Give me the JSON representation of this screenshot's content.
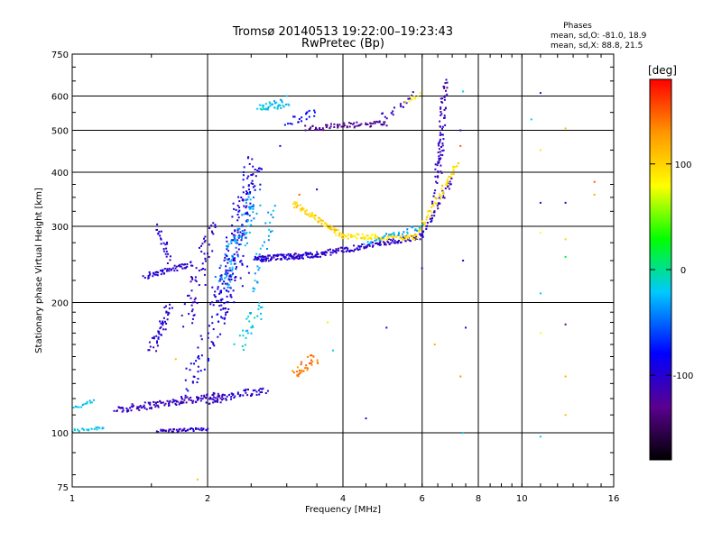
{
  "chart_data": {
    "type": "scatter",
    "title": "Tromsø 20140513 19:22:00–19:23:43",
    "subtitle": "RwPretec (Bp)",
    "xlabel": "Frequency [MHz]",
    "ylabel": "Stationary phase Virtual Height [km]",
    "x_scale": "log",
    "y_scale": "log",
    "xlim": [
      1,
      16
    ],
    "ylim": [
      75,
      750
    ],
    "x_ticks": [
      1,
      2,
      4,
      6,
      8,
      10,
      16
    ],
    "x_tick_labels": [
      "1",
      "2",
      "4",
      "6",
      "8",
      "10",
      "16"
    ],
    "y_ticks": [
      75,
      100,
      200,
      300,
      400,
      500,
      600,
      750
    ],
    "y_tick_labels": [
      "75",
      "100",
      "200",
      "300",
      "400",
      "500",
      "600",
      "750"
    ],
    "grid": true,
    "stats": {
      "heading": "Phases",
      "line_o": "mean, sd,O: -81.0, 18.9",
      "line_x": "mean, sd,X:  88.8, 21.5"
    },
    "colorbar": {
      "label": "[deg]",
      "min": -180,
      "max": 180,
      "ticks": [
        100,
        0,
        -100
      ],
      "tick_labels": [
        "100",
        "0",
        "-100"
      ],
      "colors": [
        "#000000",
        "#5a0090",
        "#0000ff",
        "#00c8ff",
        "#00ff00",
        "#ffff00",
        "#ff9600",
        "#ff0000"
      ]
    },
    "series": [
      {
        "traces": [
          {
            "x0": 1.0,
            "x1": 1.18,
            "y0": 101,
            "y1": 103,
            "n": 22,
            "j": 0.012,
            "v": -20
          },
          {
            "x0": 1.0,
            "x1": 1.12,
            "y0": 114,
            "y1": 118,
            "n": 15,
            "j": 0.015,
            "v": -20
          },
          {
            "x0": 1.25,
            "x1": 2.15,
            "y0": 113,
            "y1": 122,
            "n": 130,
            "j": 0.025,
            "v": -110
          },
          {
            "x0": 1.55,
            "x1": 2.0,
            "y0": 101,
            "y1": 102,
            "n": 45,
            "j": 0.01,
            "v": -105
          },
          {
            "x0": 1.45,
            "x1": 1.85,
            "y0": 230,
            "y1": 246,
            "n": 55,
            "j": 0.02,
            "v": -100
          },
          {
            "x0": 1.55,
            "x1": 1.65,
            "y0": 300,
            "y1": 250,
            "n": 25,
            "j": 0.03,
            "v": -100
          },
          {
            "x0": 1.5,
            "x1": 1.65,
            "y0": 155,
            "y1": 195,
            "n": 45,
            "j": 0.04,
            "v": -100
          },
          {
            "x0": 2.0,
            "x1": 2.7,
            "y0": 118,
            "y1": 126,
            "n": 60,
            "j": 0.03,
            "v": -100
          },
          {
            "x0": 2.35,
            "x1": 2.65,
            "y0": 160,
            "y1": 200,
            "n": 30,
            "j": 0.05,
            "v": -15
          },
          {
            "x0": 1.8,
            "x1": 2.05,
            "y0": 180,
            "y1": 300,
            "n": 60,
            "j": 0.07,
            "v": -105
          },
          {
            "x0": 1.8,
            "x1": 2.4,
            "y0": 125,
            "y1": 250,
            "n": 80,
            "j": 0.08,
            "v": -90
          },
          {
            "x0": 2.1,
            "x1": 2.55,
            "y0": 190,
            "y1": 420,
            "n": 180,
            "j": 0.09,
            "v": -95
          },
          {
            "x0": 2.15,
            "x1": 2.55,
            "y0": 220,
            "y1": 350,
            "n": 90,
            "j": 0.07,
            "v": -35
          },
          {
            "x0": 2.5,
            "x1": 2.8,
            "y0": 210,
            "y1": 330,
            "n": 30,
            "j": 0.05,
            "v": -30
          },
          {
            "x0": 2.55,
            "x1": 3.5,
            "y0": 252,
            "y1": 258,
            "n": 120,
            "j": 0.02,
            "v": -100
          },
          {
            "x0": 2.6,
            "x1": 3.0,
            "y0": 560,
            "y1": 580,
            "n": 40,
            "j": 0.03,
            "v": -20
          },
          {
            "x0": 3.0,
            "x1": 3.5,
            "y0": 520,
            "y1": 550,
            "n": 20,
            "j": 0.03,
            "v": -85
          },
          {
            "x0": 3.3,
            "x1": 5.0,
            "y0": 505,
            "y1": 520,
            "n": 70,
            "j": 0.02,
            "v": -130
          },
          {
            "x0": 4.8,
            "x1": 5.8,
            "y0": 530,
            "y1": 600,
            "n": 22,
            "j": 0.03,
            "v": -110
          },
          {
            "x0": 5.5,
            "x1": 5.9,
            "y0": 580,
            "y1": 610,
            "n": 10,
            "j": 0.02,
            "v": 90
          },
          {
            "x0": 3.1,
            "x1": 3.5,
            "y0": 135,
            "y1": 150,
            "n": 35,
            "j": 0.04,
            "v": 140
          },
          {
            "x0": 3.5,
            "x1": 6.0,
            "y0": 258,
            "y1": 285,
            "n": 140,
            "j": 0.02,
            "v": -105
          },
          {
            "x0": 6.0,
            "x1": 7.0,
            "y0": 285,
            "y1": 390,
            "n": 40,
            "j": 0.02,
            "v": -105
          },
          {
            "x0": 6.55,
            "x1": 6.75,
            "y0": 400,
            "y1": 650,
            "n": 60,
            "j": 0.03,
            "v": -110
          },
          {
            "x0": 6.4,
            "x1": 6.6,
            "y0": 340,
            "y1": 470,
            "n": 20,
            "j": 0.03,
            "v": -100
          }
        ]
      },
      {
        "arcs": [
          {
            "x0": 3.1,
            "x1": 4.0,
            "y0": 340,
            "y1": 285,
            "n": 70,
            "j": 0.02,
            "v": 100
          },
          {
            "x0": 4.0,
            "x1": 5.8,
            "y0": 285,
            "y1": 282,
            "n": 80,
            "j": 0.018,
            "v": 90
          },
          {
            "x0": 5.8,
            "x1": 7.2,
            "y0": 282,
            "y1": 420,
            "n": 60,
            "j": 0.02,
            "v": 95
          },
          {
            "x0": 4.5,
            "x1": 6.0,
            "y0": 275,
            "y1": 300,
            "n": 35,
            "j": 0.02,
            "v": -30
          }
        ]
      },
      {
        "points": [
          {
            "x": 7.4,
            "y": 615,
            "v": -20
          },
          {
            "x": 11.0,
            "y": 610,
            "v": -110
          },
          {
            "x": 7.3,
            "y": 500,
            "v": -100
          },
          {
            "x": 7.3,
            "y": 460,
            "v": 150
          },
          {
            "x": 7.4,
            "y": 250,
            "v": -100
          },
          {
            "x": 7.5,
            "y": 175,
            "v": -100
          },
          {
            "x": 7.3,
            "y": 135,
            "v": 130
          },
          {
            "x": 7.4,
            "y": 100,
            "v": -20
          },
          {
            "x": 6.0,
            "y": 240,
            "v": -100
          },
          {
            "x": 6.4,
            "y": 160,
            "v": 120
          },
          {
            "x": 5.0,
            "y": 175,
            "v": -100
          },
          {
            "x": 4.5,
            "y": 108,
            "v": -100
          },
          {
            "x": 3.8,
            "y": 155,
            "v": -20
          },
          {
            "x": 3.7,
            "y": 180,
            "v": 70
          },
          {
            "x": 10.5,
            "y": 530,
            "v": -20
          },
          {
            "x": 11.0,
            "y": 450,
            "v": 90
          },
          {
            "x": 11.0,
            "y": 340,
            "v": -110
          },
          {
            "x": 11.0,
            "y": 290,
            "v": 80
          },
          {
            "x": 11.0,
            "y": 210,
            "v": -20
          },
          {
            "x": 11.0,
            "y": 170,
            "v": 80
          },
          {
            "x": 11.0,
            "y": 98,
            "v": -20
          },
          {
            "x": 12.5,
            "y": 505,
            "v": 110
          },
          {
            "x": 12.5,
            "y": 340,
            "v": -100
          },
          {
            "x": 12.5,
            "y": 255,
            "v": 20
          },
          {
            "x": 12.5,
            "y": 178,
            "v": -130
          },
          {
            "x": 12.5,
            "y": 135,
            "v": 120
          },
          {
            "x": 12.5,
            "y": 110,
            "v": 110
          },
          {
            "x": 14.5,
            "y": 380,
            "v": 150
          },
          {
            "x": 14.5,
            "y": 355,
            "v": 120
          },
          {
            "x": 12.5,
            "y": 280,
            "v": 100
          },
          {
            "x": 1.9,
            "y": 78,
            "v": 110
          },
          {
            "x": 1.7,
            "y": 148,
            "v": 110
          },
          {
            "x": 2.9,
            "y": 460,
            "v": -100
          },
          {
            "x": 3.0,
            "y": 600,
            "v": -20
          },
          {
            "x": 3.2,
            "y": 355,
            "v": 150
          },
          {
            "x": 3.5,
            "y": 365,
            "v": -100
          }
        ]
      }
    ]
  }
}
